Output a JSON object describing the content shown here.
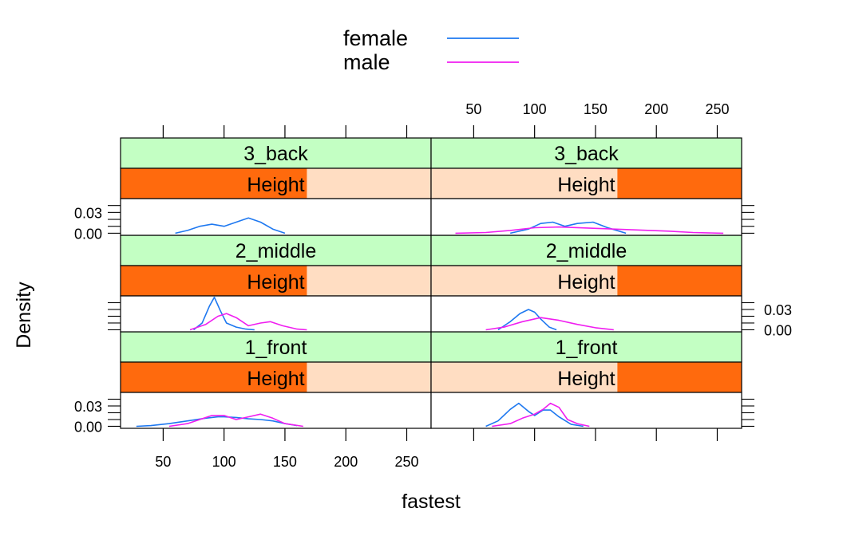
{
  "chart_data": {
    "type": "density",
    "xlabel": "fastest",
    "ylabel": "Density",
    "legend": {
      "placement": "top",
      "entries": [
        {
          "name": "female",
          "color": "#1E78F0"
        },
        {
          "name": "male",
          "color": "#F01EF0"
        }
      ]
    },
    "strip_colors": {
      "top_strip": "#C3FFC3",
      "bar_fill": "#FF6A0D",
      "bar_background": "#FFDDC2"
    },
    "x_ticks": [
      50,
      100,
      150,
      200,
      250
    ],
    "y_ticks": [
      0.0,
      0.03
    ],
    "y_tick_labels": [
      "0.00",
      "0.03"
    ],
    "panels": [
      {
        "row": "1_front",
        "column_sex": "female",
        "strip_label": "1_front",
        "shingle_label": "Height",
        "shingle_fill": [
          0.0,
          0.6
        ],
        "xlim": [
          15,
          270
        ],
        "ylim": [
          -0.003,
          0.05
        ],
        "series": [
          {
            "name": "female",
            "x": [
              28,
              40,
              55,
              70,
              85,
              95,
              100,
              110,
              120,
              130,
              140,
              150,
              160
            ],
            "y": [
              0.0,
              0.001,
              0.004,
              0.008,
              0.012,
              0.014,
              0.014,
              0.013,
              0.011,
              0.01,
              0.008,
              0.004,
              0.001
            ]
          },
          {
            "name": "male",
            "x": [
              55,
              70,
              80,
              90,
              100,
              110,
              120,
              130,
              140,
              150,
              165
            ],
            "y": [
              0.0,
              0.004,
              0.01,
              0.016,
              0.016,
              0.01,
              0.014,
              0.018,
              0.012,
              0.004,
              0.0
            ]
          }
        ]
      },
      {
        "row": "1_front",
        "column_sex": "male",
        "strip_label": "1_front",
        "shingle_label": "Height",
        "shingle_fill": [
          0.6,
          1.0
        ],
        "xlim": [
          15,
          270
        ],
        "ylim": [
          -0.003,
          0.05
        ],
        "series": [
          {
            "name": "female",
            "x": [
              60,
              70,
              80,
              87,
              95,
              100,
              107,
              113,
              120,
              130,
              140
            ],
            "y": [
              0.0,
              0.008,
              0.025,
              0.034,
              0.022,
              0.016,
              0.024,
              0.024,
              0.014,
              0.003,
              0.0
            ]
          },
          {
            "name": "male",
            "x": [
              65,
              80,
              90,
              100,
              107,
              113,
              120,
              127,
              135,
              145
            ],
            "y": [
              0.0,
              0.004,
              0.012,
              0.018,
              0.025,
              0.034,
              0.028,
              0.01,
              0.004,
              0.0
            ]
          }
        ]
      },
      {
        "row": "2_middle",
        "column_sex": "female",
        "strip_label": "2_middle",
        "shingle_label": "Height",
        "shingle_fill": [
          0.0,
          0.6
        ],
        "xlim": [
          15,
          270
        ],
        "ylim": [
          -0.003,
          0.05
        ],
        "series": [
          {
            "name": "female",
            "x": [
              75,
              82,
              88,
              92,
              97,
              102,
              110,
              118,
              125
            ],
            "y": [
              0.0,
              0.01,
              0.035,
              0.048,
              0.028,
              0.01,
              0.004,
              0.001,
              0.0
            ]
          },
          {
            "name": "male",
            "x": [
              72,
              85,
              95,
              102,
              110,
              120,
              130,
              138,
              148,
              160,
              168
            ],
            "y": [
              0.0,
              0.008,
              0.02,
              0.024,
              0.018,
              0.006,
              0.01,
              0.012,
              0.006,
              0.001,
              0.0
            ]
          }
        ]
      },
      {
        "row": "2_middle",
        "column_sex": "male",
        "strip_label": "2_middle",
        "shingle_label": "Height",
        "shingle_fill": [
          0.6,
          1.0
        ],
        "xlim": [
          15,
          270
        ],
        "ylim": [
          -0.003,
          0.05
        ],
        "series": [
          {
            "name": "female",
            "x": [
              70,
              80,
              88,
              95,
              100,
              105,
              112,
              118
            ],
            "y": [
              0.0,
              0.012,
              0.024,
              0.03,
              0.026,
              0.016,
              0.004,
              0.0
            ]
          },
          {
            "name": "male",
            "x": [
              60,
              75,
              90,
              105,
              120,
              135,
              150,
              165
            ],
            "y": [
              0.0,
              0.004,
              0.012,
              0.018,
              0.014,
              0.008,
              0.003,
              0.0
            ]
          }
        ]
      },
      {
        "row": "3_back",
        "column_sex": "female",
        "strip_label": "3_back",
        "shingle_label": "Height",
        "shingle_fill": [
          0.0,
          0.6
        ],
        "xlim": [
          15,
          270
        ],
        "ylim": [
          -0.003,
          0.05
        ],
        "series": [
          {
            "name": "female",
            "x": [
              60,
              70,
              80,
              90,
              100,
              110,
              120,
              130,
              140,
              150
            ],
            "y": [
              0.0,
              0.004,
              0.01,
              0.013,
              0.01,
              0.016,
              0.022,
              0.016,
              0.006,
              0.0
            ]
          }
        ]
      },
      {
        "row": "3_back",
        "column_sex": "male",
        "strip_label": "3_back",
        "shingle_label": "Height",
        "shingle_fill": [
          0.6,
          1.0
        ],
        "xlim": [
          15,
          270
        ],
        "ylim": [
          -0.003,
          0.05
        ],
        "series": [
          {
            "name": "female",
            "x": [
              80,
              95,
              105,
              115,
              125,
              135,
              148,
              160,
              175
            ],
            "y": [
              0.0,
              0.006,
              0.014,
              0.016,
              0.01,
              0.014,
              0.016,
              0.008,
              0.0
            ]
          },
          {
            "name": "male",
            "x": [
              35,
              60,
              80,
              100,
              120,
              150,
              180,
              210,
              230,
              255
            ],
            "y": [
              0.0,
              0.001,
              0.004,
              0.008,
              0.009,
              0.007,
              0.005,
              0.003,
              0.001,
              0.0
            ]
          }
        ]
      }
    ]
  }
}
